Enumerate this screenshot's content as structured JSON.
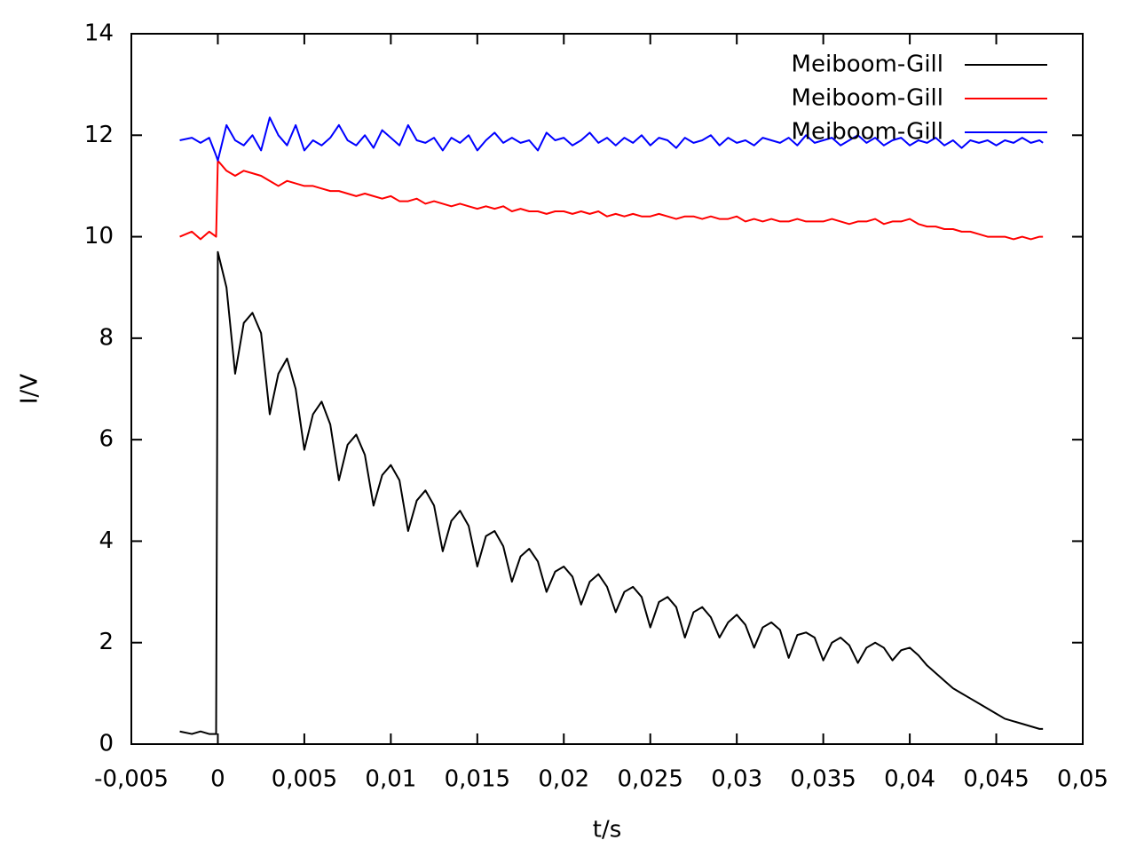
{
  "chart_data": {
    "type": "line",
    "xlabel": "t/s",
    "ylabel": "I/V",
    "xlim": [
      -0.005,
      0.05
    ],
    "ylim": [
      0,
      14
    ],
    "xticks": [
      {
        "value": -0.005,
        "label": "-0,005"
      },
      0,
      {
        "value": 0.005,
        "label": "0,005"
      },
      {
        "value": 0.01,
        "label": "0,01"
      },
      {
        "value": 0.015,
        "label": "0,015"
      },
      {
        "value": 0.02,
        "label": "0,02"
      },
      {
        "value": 0.025,
        "label": "0,025"
      },
      {
        "value": 0.03,
        "label": "0,03"
      },
      {
        "value": 0.035,
        "label": "0,035"
      },
      {
        "value": 0.04,
        "label": "0,04"
      },
      {
        "value": 0.045,
        "label": "0,045"
      },
      {
        "value": 0.05,
        "label": "0,05"
      }
    ],
    "yticks": [
      0,
      2,
      4,
      6,
      8,
      10,
      12,
      14
    ],
    "legend": "top-right",
    "x": [
      -0.0022,
      -0.0015,
      -0.001,
      -0.0005,
      -0.0001,
      0,
      0.0005,
      0.001,
      0.0015,
      0.002,
      0.0025,
      0.003,
      0.0035,
      0.004,
      0.0045,
      0.005,
      0.0055,
      0.006,
      0.0065,
      0.007,
      0.0075,
      0.008,
      0.0085,
      0.009,
      0.0095,
      0.01,
      0.0105,
      0.011,
      0.0115,
      0.012,
      0.0125,
      0.013,
      0.0135,
      0.014,
      0.0145,
      0.015,
      0.0155,
      0.016,
      0.0165,
      0.017,
      0.0175,
      0.018,
      0.0185,
      0.019,
      0.0195,
      0.02,
      0.0205,
      0.021,
      0.0215,
      0.022,
      0.0225,
      0.023,
      0.0235,
      0.024,
      0.0245,
      0.025,
      0.0255,
      0.026,
      0.0265,
      0.027,
      0.0275,
      0.028,
      0.0285,
      0.029,
      0.0295,
      0.03,
      0.0305,
      0.031,
      0.0315,
      0.032,
      0.0325,
      0.033,
      0.0335,
      0.034,
      0.0345,
      0.035,
      0.0355,
      0.036,
      0.0365,
      0.037,
      0.0375,
      0.038,
      0.0385,
      0.039,
      0.0395,
      0.04,
      0.0405,
      0.041,
      0.0415,
      0.042,
      0.0425,
      0.043,
      0.0435,
      0.044,
      0.0445,
      0.045,
      0.0455,
      0.046,
      0.0465,
      0.047,
      0.0475,
      0.0477
    ],
    "series": [
      {
        "name": "Meiboom-Gill",
        "color": "#000000",
        "values": [
          0.25,
          0.2,
          0.25,
          0.2,
          0.2,
          9.7,
          9.0,
          7.3,
          8.3,
          8.5,
          8.1,
          6.5,
          7.3,
          7.6,
          7.0,
          5.8,
          6.5,
          6.75,
          6.3,
          5.2,
          5.9,
          6.1,
          5.7,
          4.7,
          5.3,
          5.5,
          5.2,
          4.2,
          4.8,
          5.0,
          4.7,
          3.8,
          4.4,
          4.6,
          4.3,
          3.5,
          4.1,
          4.2,
          3.9,
          3.2,
          3.7,
          3.85,
          3.6,
          3.0,
          3.4,
          3.5,
          3.3,
          2.75,
          3.2,
          3.35,
          3.1,
          2.6,
          3.0,
          3.1,
          2.9,
          2.3,
          2.8,
          2.9,
          2.7,
          2.1,
          2.6,
          2.7,
          2.5,
          2.1,
          2.4,
          2.55,
          2.35,
          1.9,
          2.3,
          2.4,
          2.25,
          1.7,
          2.15,
          2.2,
          2.1,
          1.65,
          2.0,
          2.1,
          1.95,
          1.6,
          1.9,
          2.0,
          1.9,
          1.65,
          1.85,
          1.9,
          1.75,
          1.55,
          1.4,
          1.25,
          1.1,
          1.0,
          0.9,
          0.8,
          0.7,
          0.6,
          0.5,
          0.45,
          0.4,
          0.35,
          0.3,
          0.3
        ]
      },
      {
        "name": "Meiboom-Gill",
        "color": "#ff0000",
        "values": [
          10.0,
          10.1,
          9.95,
          10.1,
          10.0,
          11.5,
          11.3,
          11.2,
          11.3,
          11.25,
          11.2,
          11.1,
          11.0,
          11.1,
          11.05,
          11.0,
          11.0,
          10.95,
          10.9,
          10.9,
          10.85,
          10.8,
          10.85,
          10.8,
          10.75,
          10.8,
          10.7,
          10.7,
          10.75,
          10.65,
          10.7,
          10.65,
          10.6,
          10.65,
          10.6,
          10.55,
          10.6,
          10.55,
          10.6,
          10.5,
          10.55,
          10.5,
          10.5,
          10.45,
          10.5,
          10.5,
          10.45,
          10.5,
          10.45,
          10.5,
          10.4,
          10.45,
          10.4,
          10.45,
          10.4,
          10.4,
          10.45,
          10.4,
          10.35,
          10.4,
          10.4,
          10.35,
          10.4,
          10.35,
          10.35,
          10.4,
          10.3,
          10.35,
          10.3,
          10.35,
          10.3,
          10.3,
          10.35,
          10.3,
          10.3,
          10.3,
          10.35,
          10.3,
          10.25,
          10.3,
          10.3,
          10.35,
          10.25,
          10.3,
          10.3,
          10.35,
          10.25,
          10.2,
          10.2,
          10.15,
          10.15,
          10.1,
          10.1,
          10.05,
          10.0,
          10.0,
          10.0,
          9.95,
          10.0,
          9.95,
          10.0,
          10.0
        ]
      },
      {
        "name": "Meiboom-Gill",
        "color": "#0000ff",
        "values": [
          11.9,
          11.95,
          11.85,
          11.95,
          11.6,
          11.5,
          12.2,
          11.9,
          11.8,
          12.0,
          11.7,
          12.35,
          12.0,
          11.8,
          12.2,
          11.7,
          11.9,
          11.8,
          11.95,
          12.2,
          11.9,
          11.8,
          12.0,
          11.75,
          12.1,
          11.95,
          11.8,
          12.2,
          11.9,
          11.85,
          11.95,
          11.7,
          11.95,
          11.85,
          12.0,
          11.7,
          11.9,
          12.05,
          11.85,
          11.95,
          11.85,
          11.9,
          11.7,
          12.05,
          11.9,
          11.95,
          11.8,
          11.9,
          12.05,
          11.85,
          11.95,
          11.8,
          11.95,
          11.85,
          12.0,
          11.8,
          11.95,
          11.9,
          11.75,
          11.95,
          11.85,
          11.9,
          12.0,
          11.8,
          11.95,
          11.85,
          11.9,
          11.8,
          11.95,
          11.9,
          11.85,
          11.95,
          11.8,
          12.0,
          11.85,
          11.9,
          11.95,
          11.8,
          11.9,
          12.0,
          11.85,
          11.95,
          11.8,
          11.9,
          11.95,
          11.8,
          11.9,
          11.85,
          11.95,
          11.8,
          11.9,
          11.75,
          11.9,
          11.85,
          11.9,
          11.8,
          11.9,
          11.85,
          11.95,
          11.85,
          11.9,
          11.85
        ]
      }
    ]
  }
}
